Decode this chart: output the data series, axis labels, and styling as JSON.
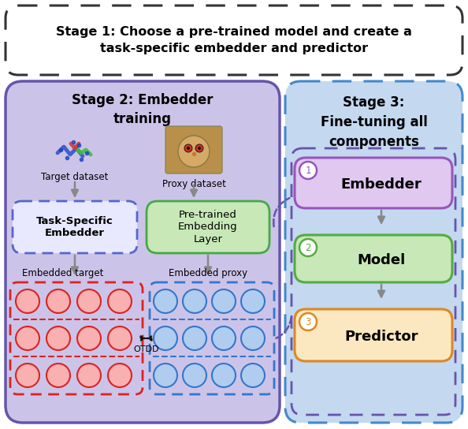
{
  "title_stage1": "Stage 1: Choose a pre-trained model and create a\ntask-specific embedder and predictor",
  "stage2_title": "Stage 2: Embedder\ntraining",
  "stage3_title": "Stage 3:\nFine-tuning all\ncomponents",
  "label_target_dataset": "Target dataset",
  "label_proxy_dataset": "Proxy dataset",
  "label_task_specific": "Task-Specific\nEmbedder",
  "label_pretrained": "Pre-trained\nEmbedding\nLayer",
  "label_embedded_target": "Embedded target",
  "label_embedded_proxy": "Embedded proxy",
  "label_otdd": "OTDD",
  "label_embedder": "Embedder",
  "label_model": "Model",
  "label_predictor": "Predictor",
  "bg_color": "#ffffff",
  "stage1_box_color": "#ffffff",
  "stage1_border_color": "#333333",
  "stage2_bg_color": "#ccc4e8",
  "stage2_border_color": "#6655aa",
  "stage3_bg_color": "#c4d8f0",
  "stage3_border_color": "#4488cc",
  "task_specific_border_color": "#5566cc",
  "task_specific_bg": "#e8e8ff",
  "pretrained_box_color": "#c8e8b8",
  "pretrained_border_color": "#44aa44",
  "embedder_box_color": "#e0c8f0",
  "embedder_border_color": "#9955bb",
  "model_box_color": "#c8e8b8",
  "model_border_color": "#55aa44",
  "predictor_box_color": "#fce8c0",
  "predictor_border_color": "#dd8822",
  "red_circle_fill": "#f8b0b0",
  "red_circle_edge": "#dd2222",
  "blue_circle_fill": "#b0ccee",
  "blue_circle_edge": "#3377cc",
  "arrow_color": "#888888",
  "otdd_color": "#111111",
  "stage2_inner_border": "#6655aa"
}
